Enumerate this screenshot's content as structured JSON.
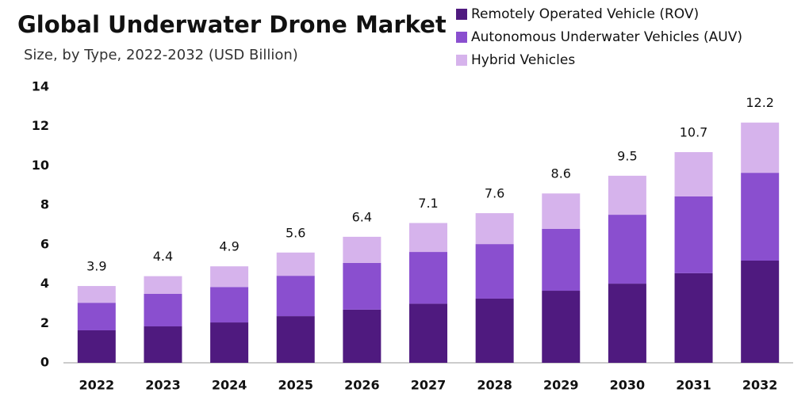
{
  "chart_data": {
    "type": "stacked_bar",
    "title": "Global Underwater Drone Market",
    "subtitle": "Size, by Type, 2022-2032 (USD Billion)",
    "categories": [
      "2022",
      "2023",
      "2024",
      "2025",
      "2026",
      "2027",
      "2028",
      "2029",
      "2030",
      "2031",
      "2032"
    ],
    "series": [
      {
        "name": "Remotely Operated Vehicle (ROV)",
        "color": "#4f1a7f",
        "values": [
          1.65,
          1.85,
          2.05,
          2.37,
          2.7,
          3.0,
          3.26,
          3.66,
          4.02,
          4.55,
          5.19
        ]
      },
      {
        "name": "Autonomous Underwater Vehicles (AUV)",
        "color": "#8a4fcf",
        "values": [
          1.4,
          1.65,
          1.8,
          2.05,
          2.37,
          2.63,
          2.77,
          3.14,
          3.5,
          3.9,
          4.46
        ]
      },
      {
        "name": "Hybrid Vehicles",
        "color": "#d6b3ec",
        "values": [
          0.85,
          0.9,
          1.05,
          1.18,
          1.33,
          1.47,
          1.57,
          1.8,
          1.98,
          2.25,
          2.55
        ]
      }
    ],
    "totals": [
      3.9,
      4.4,
      4.9,
      5.6,
      6.4,
      7.1,
      7.6,
      8.6,
      9.5,
      10.7,
      12.2
    ],
    "ylim": [
      0,
      14
    ],
    "yticks": [
      0,
      2,
      4,
      6,
      8,
      10,
      12,
      14
    ],
    "grid": false,
    "legend": "top-right"
  }
}
